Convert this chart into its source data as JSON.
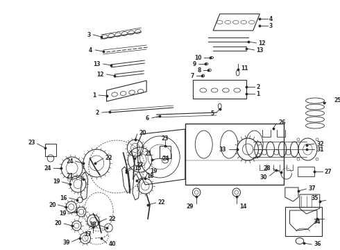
{
  "background_color": "#ffffff",
  "figsize": [
    4.9,
    3.6
  ],
  "dpi": 100,
  "line_color": "#2a2a2a",
  "label_fontsize": 5.5,
  "label_fontsize_small": 5
}
